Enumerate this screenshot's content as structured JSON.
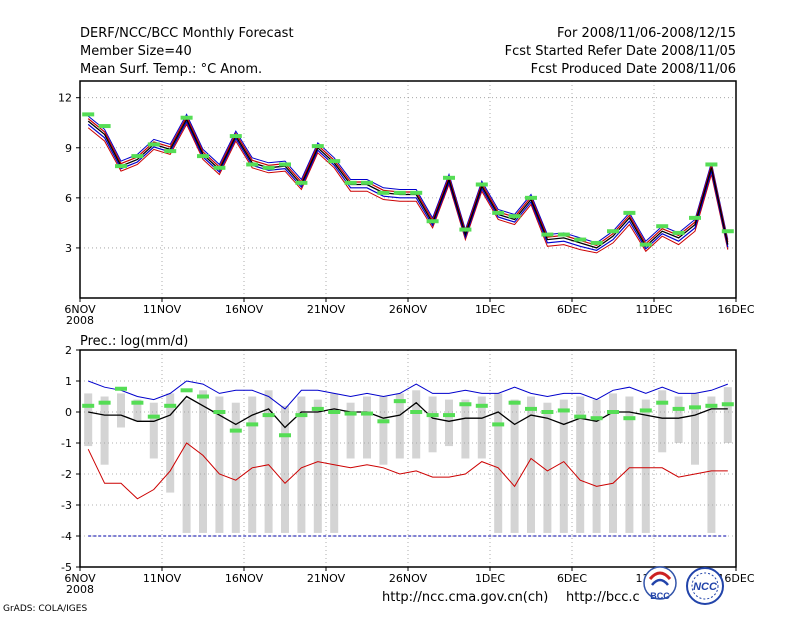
{
  "header": {
    "line1_left": "DERF/NCC/BCC Monthly Forecast",
    "line2_left": "Member Size=40",
    "line3_left": "Mean Surf. Temp.: °C Anom.",
    "line1_right": "For 2008/11/06-2008/12/15",
    "line2_right": "Fcst Started Refer Date 2008/11/05",
    "line3_right": "Fcst Produced Date 2008/11/06"
  },
  "footer": {
    "url1": "http://ncc.cma.gov.cn(ch)",
    "url2": "http://bcc.c",
    "grads": "GrADS: COLA/IGES",
    "logo1_text": "BCC",
    "logo2_text": "NCC"
  },
  "colors": {
    "upper": "#0000cc",
    "lower": "#cc0000",
    "mean": "#000000",
    "observed": "#55dd55",
    "spread": "#d4d4d4",
    "dashline": "#0000aa"
  },
  "chart_data": [
    {
      "type": "line",
      "title": "Mean Surf. Temp.: °C Anom.",
      "x_tick_labels": [
        "6NOV",
        "11NOV",
        "16NOV",
        "21NOV",
        "26NOV",
        "1DEC",
        "6DEC",
        "11DEC",
        "16DEC"
      ],
      "x_sublabel": "2008",
      "xlim": [
        0,
        40
      ],
      "ylim": [
        0,
        13
      ],
      "y_ticks": [
        3,
        6,
        9,
        12
      ],
      "mean": [
        10.6,
        9.8,
        7.9,
        8.3,
        9.2,
        8.9,
        10.7,
        8.6,
        7.7,
        9.7,
        8.1,
        7.8,
        7.9,
        6.8,
        9.0,
        8.1,
        6.8,
        6.8,
        6.3,
        6.2,
        6.2,
        4.5,
        7.1,
        3.8,
        6.7,
        5.0,
        4.7,
        5.9,
        3.5,
        3.6,
        3.3,
        3.0,
        3.7,
        4.8,
        3.1,
        4.0,
        3.6,
        4.4,
        7.8,
        3.2
      ],
      "upper": [
        10.9,
        10.1,
        8.2,
        8.6,
        9.5,
        9.2,
        11.0,
        8.9,
        8.0,
        10.0,
        8.4,
        8.1,
        8.2,
        7.1,
        9.3,
        8.4,
        7.1,
        7.1,
        6.6,
        6.5,
        6.5,
        4.8,
        7.4,
        4.1,
        7.0,
        5.3,
        5.0,
        6.2,
        3.8,
        3.9,
        3.6,
        3.3,
        4.0,
        5.1,
        3.4,
        4.3,
        3.9,
        4.7,
        8.1,
        3.5
      ],
      "lower": [
        10.2,
        9.4,
        7.6,
        8.0,
        8.9,
        8.6,
        10.4,
        8.3,
        7.4,
        9.4,
        7.8,
        7.5,
        7.6,
        6.5,
        8.7,
        7.8,
        6.4,
        6.4,
        5.9,
        5.8,
        5.8,
        4.2,
        6.8,
        3.5,
        6.4,
        4.7,
        4.4,
        5.6,
        3.1,
        3.2,
        2.9,
        2.7,
        3.3,
        4.4,
        2.8,
        3.7,
        3.2,
        4.0,
        7.4,
        2.9
      ],
      "observed": [
        11.0,
        10.3,
        7.9,
        8.5,
        9.2,
        8.8,
        10.8,
        8.5,
        7.8,
        9.7,
        8.0,
        7.8,
        8.0,
        6.9,
        9.1,
        8.2,
        6.9,
        6.9,
        6.3,
        6.3,
        6.3,
        4.6,
        7.2,
        4.1,
        6.8,
        5.1,
        4.9,
        6.0,
        3.8,
        3.8,
        3.5,
        3.3,
        4.0,
        5.1,
        3.2,
        4.3,
        3.9,
        4.8,
        8.0,
        4.0
      ]
    },
    {
      "type": "line",
      "title": "Prec.: log(mm/d)",
      "x_tick_labels": [
        "6NOV",
        "11NOV",
        "16NOV",
        "21NOV",
        "26NOV",
        "1DEC",
        "6DEC",
        "11DEC",
        "16DEC"
      ],
      "x_sublabel": "2008",
      "xlim": [
        0,
        40
      ],
      "ylim": [
        -5,
        2
      ],
      "y_ticks": [
        -5,
        -4,
        -3,
        -2,
        -1,
        0,
        1,
        2
      ],
      "upper": [
        1.0,
        0.8,
        0.7,
        0.5,
        0.4,
        0.6,
        1.0,
        0.9,
        0.6,
        0.7,
        0.7,
        0.5,
        0.1,
        0.7,
        0.7,
        0.6,
        0.5,
        0.6,
        0.5,
        0.6,
        0.9,
        0.6,
        0.6,
        0.7,
        0.6,
        0.6,
        0.8,
        0.6,
        0.5,
        0.6,
        0.6,
        0.4,
        0.7,
        0.8,
        0.6,
        0.8,
        0.6,
        0.6,
        0.7,
        0.9
      ],
      "mean": [
        0.0,
        -0.1,
        -0.1,
        -0.3,
        -0.3,
        -0.1,
        0.5,
        0.2,
        -0.1,
        -0.4,
        -0.1,
        0.1,
        -0.5,
        0.0,
        0.0,
        0.1,
        0.0,
        0.0,
        -0.2,
        -0.1,
        0.3,
        -0.2,
        -0.3,
        -0.2,
        -0.2,
        0.0,
        -0.4,
        -0.1,
        -0.2,
        -0.4,
        -0.2,
        -0.3,
        0.0,
        0.0,
        -0.1,
        -0.2,
        -0.2,
        -0.1,
        0.1,
        0.1
      ],
      "lower": [
        -1.2,
        -2.3,
        -2.3,
        -2.8,
        -2.5,
        -1.9,
        -1.0,
        -1.4,
        -2.0,
        -2.2,
        -1.8,
        -1.7,
        -2.3,
        -1.8,
        -1.6,
        -1.7,
        -1.8,
        -1.7,
        -1.8,
        -2.0,
        -1.9,
        -2.1,
        -2.1,
        -2.0,
        -1.6,
        -1.8,
        -2.4,
        -1.5,
        -1.9,
        -1.6,
        -2.2,
        -2.4,
        -2.3,
        -1.8,
        -1.8,
        -1.8,
        -2.1,
        -2.0,
        -1.9,
        -1.9
      ],
      "observed": [
        0.2,
        0.3,
        0.75,
        0.3,
        -0.15,
        0.2,
        0.7,
        0.5,
        0.0,
        -0.6,
        -0.4,
        -0.1,
        -0.75,
        -0.1,
        0.1,
        0.0,
        -0.05,
        -0.05,
        -0.3,
        0.35,
        0.0,
        -0.1,
        -0.1,
        0.25,
        0.2,
        -0.4,
        0.3,
        0.1,
        0.0,
        0.05,
        -0.15,
        -0.2,
        0.0,
        -0.2,
        0.05,
        0.3,
        0.1,
        0.15,
        0.2,
        0.25
      ],
      "spread_high": [
        0.6,
        0.5,
        0.6,
        0.4,
        0.3,
        0.6,
        0.4,
        0.7,
        0.5,
        0.3,
        0.5,
        0.7,
        0.2,
        0.5,
        0.4,
        0.6,
        0.3,
        0.5,
        0.5,
        0.6,
        0.7,
        0.5,
        0.4,
        0.4,
        0.5,
        0.6,
        0.4,
        0.5,
        0.3,
        0.4,
        0.5,
        0.4,
        0.6,
        0.5,
        0.4,
        0.7,
        0.5,
        0.6,
        0.5,
        0.8
      ],
      "spread_low": [
        -1.1,
        -1.7,
        -0.5,
        -0.3,
        -1.5,
        -2.6,
        -3.9,
        -3.9,
        -3.9,
        -3.9,
        -3.9,
        -3.9,
        -3.9,
        -3.9,
        -3.9,
        -3.9,
        -1.5,
        -1.5,
        -1.7,
        -1.5,
        -1.5,
        -1.3,
        -1.1,
        -1.5,
        -1.5,
        -3.9,
        -3.9,
        -3.9,
        -3.9,
        -3.9,
        -3.9,
        -3.9,
        -3.9,
        -3.9,
        -3.9,
        -1.3,
        -1.0,
        -1.7,
        -3.9,
        -1.0
      ],
      "reference_line": -4
    }
  ]
}
